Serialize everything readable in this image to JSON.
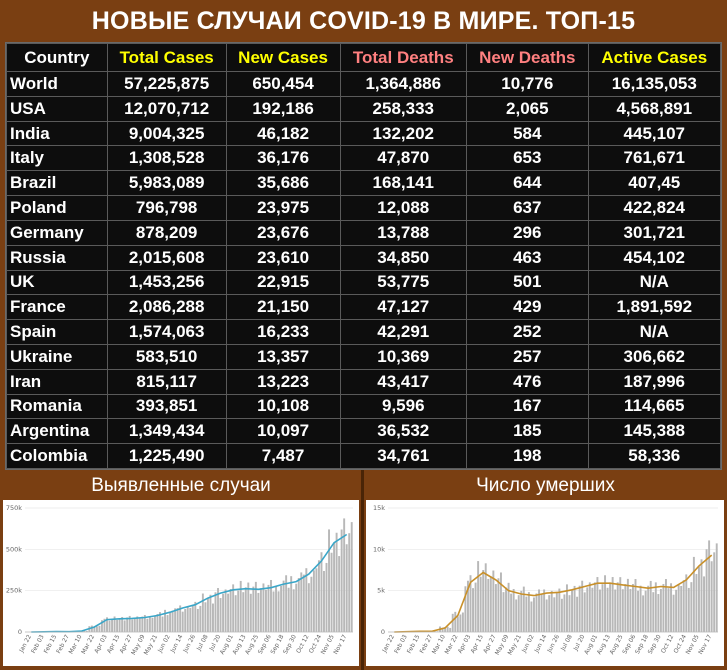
{
  "title": "НОВЫЕ СЛУЧАИ COVID-19 В МИРЕ. ТОП-15",
  "columns": [
    "Country",
    "Total Cases",
    "New Cases",
    "Total Deaths",
    "New Deaths",
    "Active Cases"
  ],
  "colors": {
    "background": "#7a3f12",
    "header_yellow": "#ffff00",
    "header_pink": "#ff8080",
    "cases_line": "#3aa6c8",
    "deaths_line": "#c8902a",
    "bars": "#b8b8b8"
  },
  "rows": [
    {
      "country": "World",
      "total": "57,225,875",
      "new": "650,454",
      "deaths": "1,364,886",
      "new_deaths": "10,776",
      "active": "16,135,053"
    },
    {
      "country": "USA",
      "total": "12,070,712",
      "new": "192,186",
      "deaths": "258,333",
      "new_deaths": "2,065",
      "active": "4,568,891"
    },
    {
      "country": "India",
      "total": "9,004,325",
      "new": "46,182",
      "deaths": "132,202",
      "new_deaths": "584",
      "active": "445,107"
    },
    {
      "country": "Italy",
      "total": "1,308,528",
      "new": "36,176",
      "deaths": "47,870",
      "new_deaths": "653",
      "active": "761,671"
    },
    {
      "country": "Brazil",
      "total": "5,983,089",
      "new": "35,686",
      "deaths": "168,141",
      "new_deaths": "644",
      "active": "407,45"
    },
    {
      "country": "Poland",
      "total": "796,798",
      "new": "23,975",
      "deaths": "12,088",
      "new_deaths": "637",
      "active": "422,824"
    },
    {
      "country": "Germany",
      "total": "878,209",
      "new": "23,676",
      "deaths": "13,788",
      "new_deaths": "296",
      "active": "301,721"
    },
    {
      "country": "Russia",
      "total": "2,015,608",
      "new": "23,610",
      "deaths": "34,850",
      "new_deaths": "463",
      "active": "454,102"
    },
    {
      "country": "UK",
      "total": "1,453,256",
      "new": "22,915",
      "deaths": "53,775",
      "new_deaths": "501",
      "active": "N/A"
    },
    {
      "country": "France",
      "total": "2,086,288",
      "new": "21,150",
      "deaths": "47,127",
      "new_deaths": "429",
      "active": "1,891,592"
    },
    {
      "country": "Spain",
      "total": "1,574,063",
      "new": "16,233",
      "deaths": "42,291",
      "new_deaths": "252",
      "active": "N/A"
    },
    {
      "country": "Ukraine",
      "total": "583,510",
      "new": "13,357",
      "deaths": "10,369",
      "new_deaths": "257",
      "active": "306,662"
    },
    {
      "country": "Iran",
      "total": "815,117",
      "new": "13,223",
      "deaths": "43,417",
      "new_deaths": "476",
      "active": "187,996"
    },
    {
      "country": "Romania",
      "total": "393,851",
      "new": "10,108",
      "deaths": "9,596",
      "new_deaths": "167",
      "active": "114,665"
    },
    {
      "country": "Argentina",
      "total": "1,349,434",
      "new": "10,097",
      "deaths": "36,532",
      "new_deaths": "185",
      "active": "145,388"
    },
    {
      "country": "Colombia",
      "total": "1,225,490",
      "new": "7,487",
      "deaths": "34,761",
      "new_deaths": "198",
      "active": "58,336"
    }
  ],
  "chart_labels": {
    "cases": "Выявленные случаи",
    "deaths": "Число умерших"
  },
  "chart_data": [
    {
      "type": "bar",
      "x": [
        "Jan 22",
        "Feb 03",
        "Feb 15",
        "Feb 27",
        "Mar 10",
        "Mar 22",
        "Apr 03",
        "Apr 15",
        "Apr 27",
        "May 09",
        "May 21",
        "Jun 02",
        "Jun 14",
        "Jun 26",
        "Jul 08",
        "Jul 20",
        "Aug 01",
        "Aug 13",
        "Aug 25",
        "Sep 06",
        "Sep 18",
        "Sep 30",
        "Oct 12",
        "Oct 24",
        "Nov 05",
        "Nov 17"
      ],
      "values": [
        0,
        1000,
        3000,
        2000,
        8000,
        35000,
        80000,
        82000,
        85000,
        90000,
        105000,
        125000,
        150000,
        170000,
        210000,
        240000,
        260000,
        270000,
        265000,
        275000,
        300000,
        315000,
        360000,
        450000,
        560000,
        620000
      ],
      "trend": [
        0,
        1000,
        2500,
        2000,
        6000,
        30000,
        75000,
        80000,
        82000,
        88000,
        100000,
        120000,
        145000,
        165000,
        205000,
        235000,
        255000,
        262000,
        258000,
        268000,
        290000,
        305000,
        350000,
        430000,
        540000,
        590000
      ],
      "yticks": [
        "0",
        "250k",
        "500k",
        "750k"
      ],
      "ylim": [
        0,
        750000
      ]
    },
    {
      "type": "bar",
      "x": [
        "Jan 22",
        "Feb 03",
        "Feb 15",
        "Feb 27",
        "Mar 10",
        "Mar 22",
        "Apr 03",
        "Apr 15",
        "Apr 27",
        "May 09",
        "May 21",
        "Jun 02",
        "Jun 14",
        "Jun 26",
        "Jul 08",
        "Jul 20",
        "Aug 01",
        "Aug 13",
        "Aug 25",
        "Sep 06",
        "Sep 18",
        "Sep 30",
        "Oct 12",
        "Oct 24",
        "Nov 05",
        "Nov 17"
      ],
      "values": [
        0,
        50,
        100,
        100,
        600,
        2200,
        6200,
        7500,
        6500,
        5200,
        4800,
        4500,
        4800,
        4900,
        5200,
        5600,
        6000,
        6000,
        5800,
        5600,
        5400,
        5600,
        5500,
        6500,
        8200,
        10000
      ],
      "trend": [
        0,
        40,
        80,
        100,
        500,
        2000,
        6000,
        7200,
        6300,
        5000,
        4600,
        4400,
        4700,
        4800,
        5100,
        5500,
        5900,
        5900,
        5700,
        5500,
        5300,
        5500,
        5400,
        6300,
        8000,
        9300
      ],
      "yticks": [
        "0",
        "5k",
        "10k",
        "15k"
      ],
      "ylim": [
        0,
        15000
      ]
    }
  ]
}
